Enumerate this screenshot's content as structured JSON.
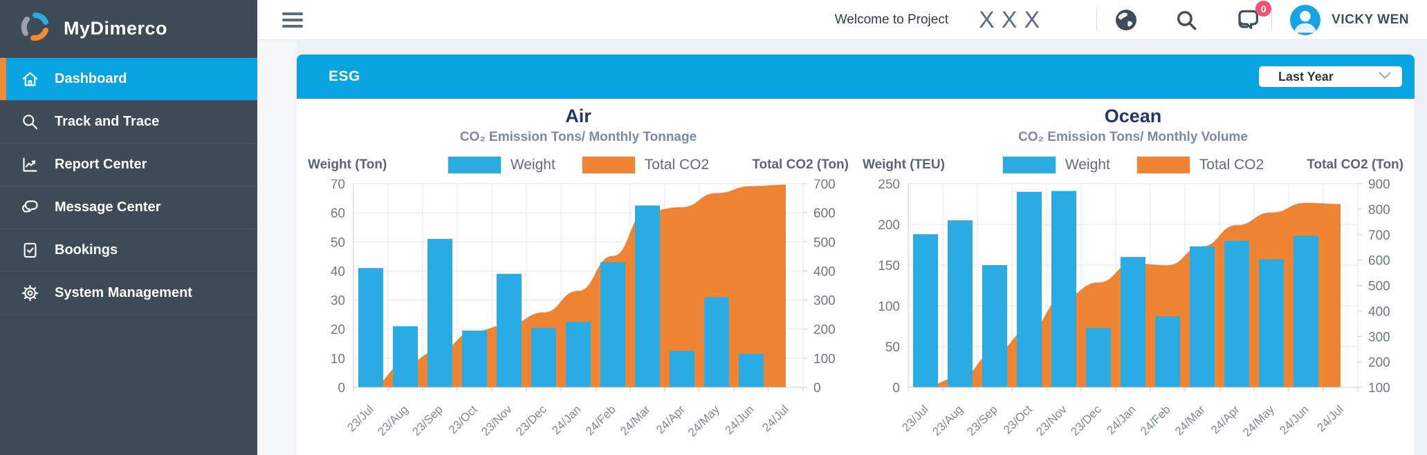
{
  "app": {
    "name": "MyDimerco"
  },
  "sidebar": {
    "items": [
      {
        "label": "Dashboard",
        "icon": "home-icon",
        "active": true
      },
      {
        "label": "Track and Trace",
        "icon": "search-icon",
        "active": false
      },
      {
        "label": "Report Center",
        "icon": "report-chart-icon",
        "active": false
      },
      {
        "label": "Message Center",
        "icon": "chat-bubbles-icon",
        "active": false
      },
      {
        "label": "Bookings",
        "icon": "booking-document-icon",
        "active": false
      },
      {
        "label": "System Management",
        "icon": "gear-icon",
        "active": false
      }
    ]
  },
  "topbar": {
    "welcome_text": "Welcome to Project",
    "project_name": "XXX",
    "notification_count": "0",
    "user_name": "VICKY WEN"
  },
  "esg_panel": {
    "title": "ESG",
    "period_selector": {
      "value": "Last Year"
    }
  },
  "colors": {
    "accent_blue": "#08a4e2",
    "bar_blue": "#2aabe2",
    "area_orange": "#ef8432",
    "sidebar_dark": "#3e4a56",
    "active_stripe_orange": "#f28b33",
    "badge_red": "#f4516c"
  },
  "chart_data": [
    {
      "type": "bar+area",
      "title": "Air",
      "subtitle": "CO₂ Emission Tons/ Monthly Tonnage",
      "left_axis_label": "Weight (Ton)",
      "right_axis_label": "Total CO2 (Ton)",
      "legend": [
        {
          "label": "Weight",
          "color": "#2aabe2"
        },
        {
          "label": "Total CO2",
          "color": "#ef8432"
        }
      ],
      "categories": [
        "23/Jul",
        "23/Aug",
        "23/Sep",
        "23/Oct",
        "23/Nov",
        "23/Dec",
        "24/Jan",
        "24/Feb",
        "24/Mar",
        "24/Apr",
        "24/May",
        "24/Jun",
        "24/Jul"
      ],
      "left_axis": {
        "min": 0,
        "max": 70,
        "ticks": [
          70,
          60,
          50,
          40,
          30,
          20,
          10,
          0
        ]
      },
      "right_axis": {
        "min": 0,
        "max": 700,
        "ticks": [
          700,
          600,
          500,
          400,
          300,
          200,
          100,
          0
        ]
      },
      "grid": true,
      "legend_position": "top",
      "series": [
        {
          "name": "Weight",
          "type": "bar",
          "axis": "left",
          "color": "#2aabe2",
          "values": [
            41,
            21,
            51,
            19.5,
            39,
            20.5,
            22.5,
            43,
            62.5,
            12.5,
            31,
            11.5,
            0
          ]
        },
        {
          "name": "Total CO2",
          "type": "area",
          "axis": "right",
          "color": "#ef8432",
          "values": [
            2,
            80,
            128,
            192,
            215,
            256,
            330,
            450,
            605,
            618,
            666,
            690,
            695
          ]
        }
      ]
    },
    {
      "type": "bar+area",
      "title": "Ocean",
      "subtitle": "CO₂ Emission Tons/ Monthly Volume",
      "left_axis_label": "Weight (TEU)",
      "right_axis_label": "Total CO2 (Ton)",
      "legend": [
        {
          "label": "Weight",
          "color": "#2aabe2"
        },
        {
          "label": "Total CO2",
          "color": "#ef8432"
        }
      ],
      "categories": [
        "23/Jul",
        "23/Aug",
        "23/Sep",
        "23/Oct",
        "23/Nov",
        "23/Dec",
        "24/Jan",
        "24/Feb",
        "24/Mar",
        "24/Apr",
        "24/May",
        "24/Jun",
        "24/Jul"
      ],
      "left_axis": {
        "min": 0,
        "max": 250,
        "ticks": [
          250,
          200,
          150,
          100,
          50,
          0
        ]
      },
      "right_axis": {
        "min": 100,
        "max": 900,
        "ticks": [
          900,
          800,
          700,
          600,
          500,
          400,
          300,
          200,
          100
        ]
      },
      "grid": true,
      "legend_position": "top",
      "series": [
        {
          "name": "Weight",
          "type": "bar",
          "axis": "left",
          "color": "#2aabe2",
          "values": [
            188,
            205,
            150,
            240,
            241,
            73,
            160,
            87,
            173,
            180,
            157,
            186,
            0
          ]
        },
        {
          "name": "Total CO2",
          "type": "area",
          "axis": "right",
          "color": "#ef8432",
          "values": [
            105,
            138,
            235,
            325,
            452,
            510,
            585,
            578,
            652,
            735,
            785,
            823,
            818
          ]
        }
      ]
    }
  ]
}
